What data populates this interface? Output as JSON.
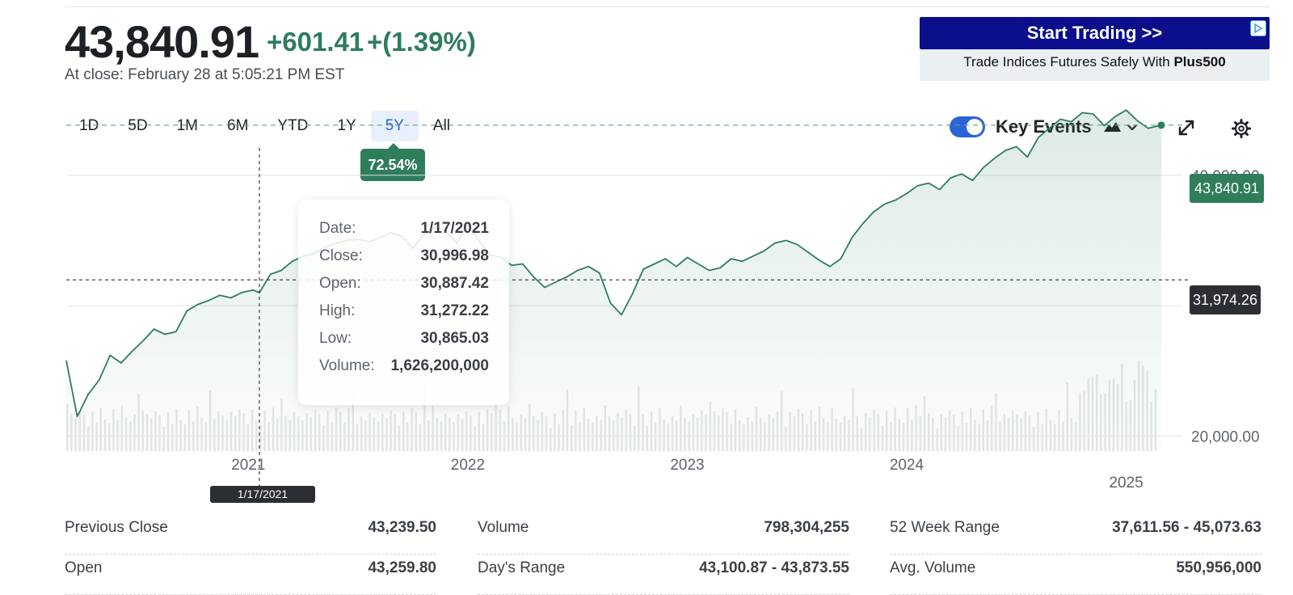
{
  "quote": {
    "price": "43,840.91",
    "change": "+601.41",
    "change_pct": "+(1.39%)",
    "close_note": "At close: February 28 at 5:05:21 PM EST"
  },
  "ad": {
    "button_label": "Start Trading >>",
    "tagline_prefix": "Trade Indices Futures Safely With ",
    "tagline_brand": "Plus500"
  },
  "ranges": [
    "1D",
    "5D",
    "1M",
    "6M",
    "YTD",
    "1Y",
    "5Y",
    "All"
  ],
  "active_range": "5Y",
  "range_change_badge": "72.54%",
  "key_events": {
    "label": "Key Events",
    "enabled": true
  },
  "chart_labels": {
    "last_price": "43,840.91",
    "crosshair_value": "31,974.26",
    "crosshair_date": "1/17/2021"
  },
  "tooltip": {
    "date_label": "Date:",
    "date": "1/17/2021",
    "close_label": "Close:",
    "close": "30,996.98",
    "open_label": "Open:",
    "open": "30,887.42",
    "high_label": "High:",
    "high": "31,272.22",
    "low_label": "Low:",
    "low": "30,865.03",
    "volume_label": "Volume:",
    "volume": "1,626,200,000"
  },
  "stats": {
    "col1": [
      {
        "label": "Previous Close",
        "value": "43,239.50"
      },
      {
        "label": "Open",
        "value": "43,259.80"
      }
    ],
    "col2": [
      {
        "label": "Volume",
        "value": "798,304,255"
      },
      {
        "label": "Day's Range",
        "value": "43,100.87 - 43,873.55"
      }
    ],
    "col3": [
      {
        "label": "52 Week Range",
        "value": "37,611.56 - 45,073.63"
      },
      {
        "label": "Avg. Volume",
        "value": "550,956,000"
      }
    ]
  },
  "chart_data": {
    "type": "area",
    "xlabel": "",
    "ylabel": "",
    "x_ticks": [
      "2021",
      "2022",
      "2023",
      "2024",
      "2025"
    ],
    "y_ticks": [
      "20,000.00",
      "30,000.00",
      "40,000.00"
    ],
    "ylim": [
      15000,
      46000
    ],
    "grid": true,
    "color": "#2e7d5b",
    "series": [
      {
        "x": [
          2020.17,
          2020.22,
          2020.27,
          2020.32,
          2020.37,
          2020.42,
          2020.47,
          2020.52,
          2020.57,
          2020.62,
          2020.67,
          2020.72,
          2020.77,
          2020.82,
          2020.87,
          2020.92,
          2020.97,
          2021.02,
          2021.05,
          2021.1,
          2021.15,
          2021.2,
          2021.25,
          2021.3,
          2021.35,
          2021.4,
          2021.45,
          2021.5,
          2021.55,
          2021.6,
          2021.65,
          2021.7,
          2021.75,
          2021.8,
          2021.85,
          2021.9,
          2021.95,
          2022.0,
          2022.05,
          2022.1,
          2022.15,
          2022.2,
          2022.25,
          2022.3,
          2022.35,
          2022.4,
          2022.45,
          2022.5,
          2022.55,
          2022.6,
          2022.65,
          2022.7,
          2022.75,
          2022.8,
          2022.85,
          2022.9,
          2022.95,
          2023.0,
          2023.05,
          2023.1,
          2023.15,
          2023.2,
          2023.25,
          2023.3,
          2023.35,
          2023.4,
          2023.45,
          2023.5,
          2023.55,
          2023.6,
          2023.65,
          2023.7,
          2023.75,
          2023.8,
          2023.85,
          2023.9,
          2023.95,
          2024.0,
          2024.05,
          2024.1,
          2024.15,
          2024.2,
          2024.25,
          2024.3,
          2024.35,
          2024.4,
          2024.45,
          2024.5,
          2024.55,
          2024.6,
          2024.65,
          2024.7,
          2024.75,
          2024.8,
          2024.85,
          2024.9,
          2024.95,
          2025.0,
          2025.05,
          2025.1,
          2025.16
        ],
        "values": [
          25800,
          21500,
          23200,
          24300,
          26200,
          25600,
          26500,
          27300,
          28200,
          27800,
          28000,
          29600,
          30100,
          30400,
          30800,
          30600,
          31000,
          31200,
          30997,
          32400,
          32700,
          33400,
          33800,
          34000,
          34500,
          34800,
          35000,
          35100,
          34900,
          35200,
          35600,
          35300,
          34400,
          35500,
          36000,
          35700,
          34800,
          36300,
          35000,
          33900,
          33700,
          33100,
          33200,
          32200,
          31400,
          31800,
          32200,
          32700,
          33000,
          32500,
          30200,
          29300,
          30900,
          32800,
          33200,
          33600,
          33000,
          33700,
          33200,
          32700,
          32900,
          33600,
          33400,
          33800,
          34200,
          34800,
          35000,
          34700,
          34100,
          33500,
          33000,
          33600,
          35200,
          36300,
          37200,
          37800,
          38100,
          38600,
          39200,
          39400,
          38900,
          39800,
          40100,
          39600,
          40600,
          41300,
          41900,
          42200,
          41400,
          42900,
          43600,
          44300,
          44100,
          44800,
          44700,
          43800,
          44500,
          45000,
          44200,
          43600,
          43841
        ]
      }
    ]
  }
}
